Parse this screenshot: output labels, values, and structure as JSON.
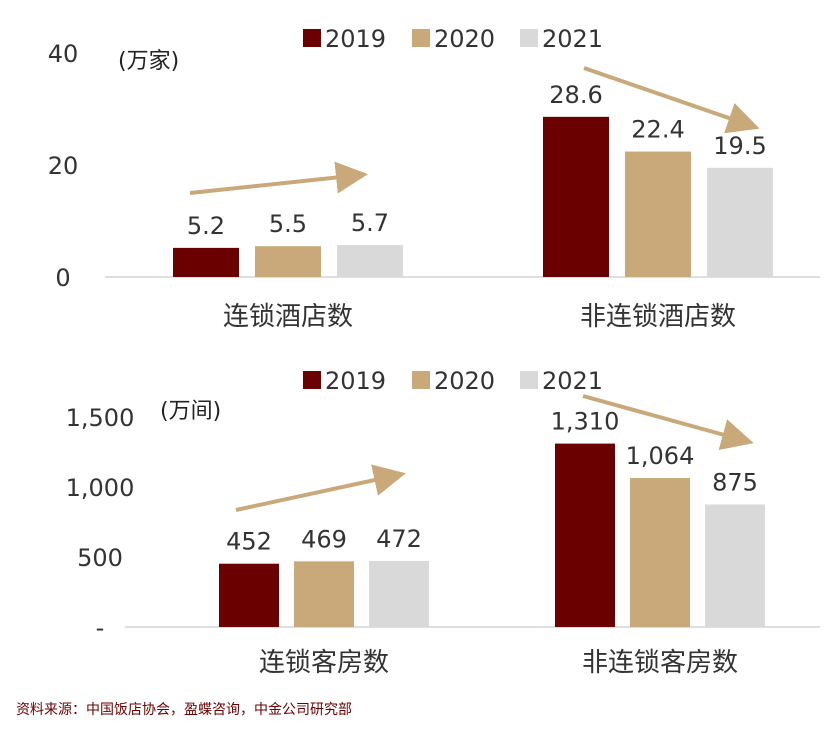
{
  "chart_data": [
    {
      "type": "bar",
      "unit_label": "(万家)",
      "categories": [
        "连锁酒店数",
        "非连锁酒店数"
      ],
      "series": [
        {
          "name": "2019",
          "values": [
            5.2,
            28.6
          ]
        },
        {
          "name": "2020",
          "values": [
            5.5,
            22.4
          ]
        },
        {
          "name": "2021",
          "values": [
            5.7,
            19.5
          ]
        }
      ],
      "value_labels": [
        [
          "5.2",
          "28.6"
        ],
        [
          "5.5",
          "22.4"
        ],
        [
          "5.7",
          "19.5"
        ]
      ],
      "ylim": [
        0,
        40
      ],
      "yticks": [
        0,
        20,
        40
      ],
      "ytick_labels": [
        "0",
        "20",
        "40"
      ],
      "grid": false,
      "legend_position": "top",
      "trend_arrows": [
        "up",
        "down"
      ]
    },
    {
      "type": "bar",
      "unit_label": "(万间)",
      "categories": [
        "连锁客房数",
        "非连锁客房数"
      ],
      "series": [
        {
          "name": "2019",
          "values": [
            452,
            1310
          ]
        },
        {
          "name": "2020",
          "values": [
            469,
            1064
          ]
        },
        {
          "name": "2021",
          "values": [
            472,
            875
          ]
        }
      ],
      "value_labels": [
        [
          "452",
          "1,310"
        ],
        [
          "469",
          "1,064"
        ],
        [
          "472",
          "875"
        ]
      ],
      "ylim": [
        0,
        1500
      ],
      "yticks": [
        0,
        500,
        1000,
        1500
      ],
      "ytick_labels": [
        "-",
        "500",
        "1,000",
        "1,500"
      ],
      "grid": false,
      "legend_position": "top",
      "trend_arrows": [
        "up",
        "down"
      ]
    }
  ],
  "colors": {
    "series": [
      "#6b0000",
      "#c9a97a",
      "#d9d9d9"
    ],
    "arrow": "#c9a97a",
    "axis": "#bfbfbf",
    "text": "#333333",
    "source": "#6b0000"
  },
  "source_note": "资料来源：中国饭店协会，盈蝶咨询，中金公司研究部"
}
